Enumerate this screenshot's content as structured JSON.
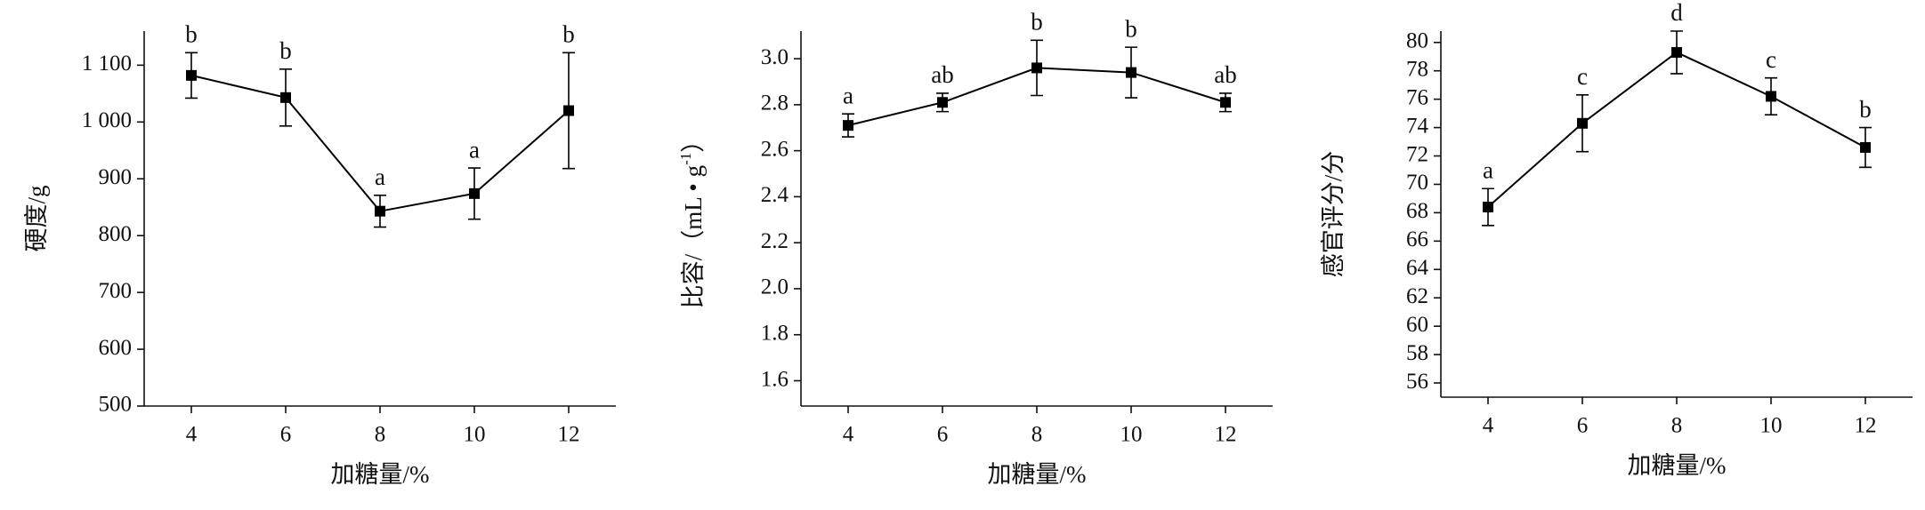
{
  "chart_data": [
    {
      "type": "line",
      "xlabel": "加糖量/%",
      "ylabel": "硬度/g",
      "color": "#000000",
      "x": [
        4,
        6,
        8,
        10,
        12
      ],
      "xlim": [
        3,
        13
      ],
      "xticks": [
        4,
        6,
        8,
        10,
        12
      ],
      "ylim": [
        500,
        1160
      ],
      "yticks": [
        500,
        600,
        700,
        800,
        900,
        {
          "value": 1000,
          "label": "1 000"
        },
        {
          "value": 1100,
          "label": "1 100"
        }
      ],
      "values": [
        1082,
        1043,
        843,
        874,
        1020
      ],
      "errors": [
        40,
        50,
        28,
        45,
        102
      ],
      "letters": [
        "b",
        "b",
        "a",
        "a",
        "b"
      ]
    },
    {
      "type": "line",
      "xlabel": "加糖量/%",
      "ylabel": "比容/（mL • g",
      "ylabel_sup": "-1",
      "ylabel_end": "）",
      "color": "#000000",
      "x": [
        4,
        6,
        8,
        10,
        12
      ],
      "xlim": [
        3,
        13
      ],
      "xticks": [
        4,
        6,
        8,
        10,
        12
      ],
      "ylim": [
        1.49,
        3.12
      ],
      "yticks": [
        1.6,
        1.8,
        {
          "value": 2,
          "label": "2.0"
        },
        2.2,
        2.4,
        2.6,
        2.8,
        {
          "value": 3,
          "label": "3.0"
        }
      ],
      "values": [
        2.71,
        2.81,
        2.96,
        2.94,
        2.81
      ],
      "errors": [
        0.05,
        0.04,
        0.12,
        0.11,
        0.04
      ],
      "letters": [
        "a",
        "ab",
        "b",
        "b",
        "ab"
      ]
    },
    {
      "type": "line",
      "xlabel": "加糖量/%",
      "ylabel": "感官评分/分",
      "color": "#000000",
      "x": [
        4,
        6,
        8,
        10,
        12
      ],
      "xlim": [
        3,
        13
      ],
      "xticks": [
        4,
        6,
        8,
        10,
        12
      ],
      "ylim": [
        55,
        80.8
      ],
      "yticks": [
        56,
        58,
        60,
        62,
        64,
        66,
        68,
        70,
        72,
        74,
        76,
        78,
        80
      ],
      "values": [
        68.4,
        74.3,
        79.3,
        76.2,
        72.6
      ],
      "errors": [
        1.3,
        2.0,
        1.5,
        1.3,
        1.4
      ],
      "letters": [
        "a",
        "c",
        "d",
        "c",
        "b"
      ]
    }
  ]
}
